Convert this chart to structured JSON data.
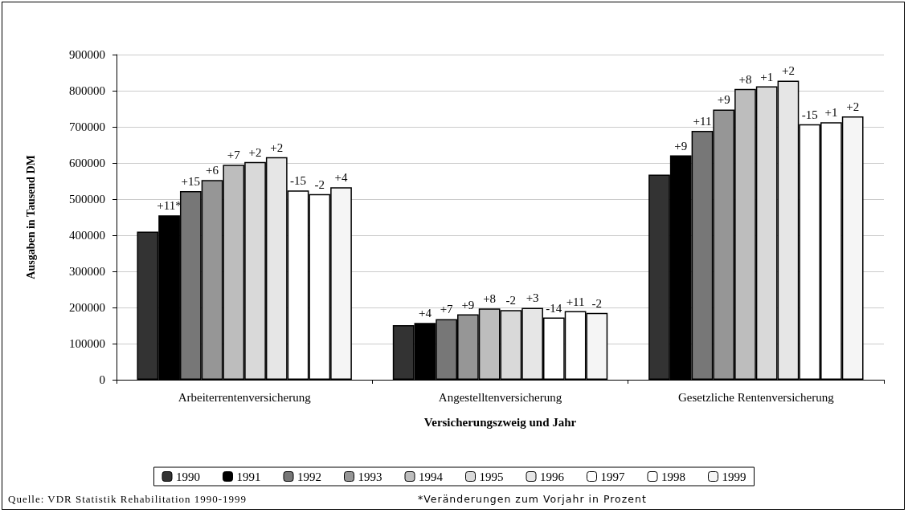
{
  "chart_data": {
    "type": "bar",
    "categories": [
      "Arbeiterrentenversicherung",
      "Angestelltenversicherung",
      "Gesetzliche Rentenversicherung"
    ],
    "xlabel": "Versicherungszweig und Jahr",
    "ylabel": "Ausgaben in Tausend DM",
    "ylim": [
      0,
      900000
    ],
    "yticks": [
      0,
      100000,
      200000,
      300000,
      400000,
      500000,
      600000,
      700000,
      800000,
      900000
    ],
    "grid": "y",
    "legend": "bottom",
    "series": [
      {
        "name": "1990",
        "color": "#333333",
        "values": [
          410000,
          151000,
          568000
        ]
      },
      {
        "name": "1991",
        "color": "#000000",
        "values": [
          455000,
          157000,
          621000
        ]
      },
      {
        "name": "1992",
        "color": "#777777",
        "values": [
          522000,
          168000,
          689000
        ]
      },
      {
        "name": "1993",
        "color": "#969696",
        "values": [
          553000,
          181000,
          748000
        ]
      },
      {
        "name": "1994",
        "color": "#bdbdbd",
        "values": [
          595000,
          197000,
          805000
        ]
      },
      {
        "name": "1995",
        "color": "#d9d9d9",
        "values": [
          603000,
          193000,
          812000
        ]
      },
      {
        "name": "1996",
        "color": "#e6e6e6",
        "values": [
          616000,
          199000,
          828000
        ]
      },
      {
        "name": "1997",
        "color": "#ffffff",
        "values": [
          524000,
          172000,
          707000
        ]
      },
      {
        "name": "1998",
        "color": "#ffffff",
        "values": [
          514000,
          190000,
          713000
        ]
      },
      {
        "name": "1999",
        "color": "#f5f5f5",
        "values": [
          533000,
          185000,
          729000
        ]
      }
    ],
    "annotations": [
      "Quelle: VDR Statistik Rehabilitation 1990-1999",
      "*Veränderungen zum Vorjahr in Prozent",
      "+11*",
      "+15",
      "+6",
      "+7",
      "+2",
      "+2",
      "-15",
      "-2",
      "+4",
      "+4",
      "+7",
      "+9",
      "+8",
      "-2",
      "+3",
      "-14",
      "+11",
      "-2",
      "+9",
      "+11",
      "+9",
      "+8",
      "+1",
      "+2",
      "-15",
      "+1",
      "+2"
    ]
  }
}
